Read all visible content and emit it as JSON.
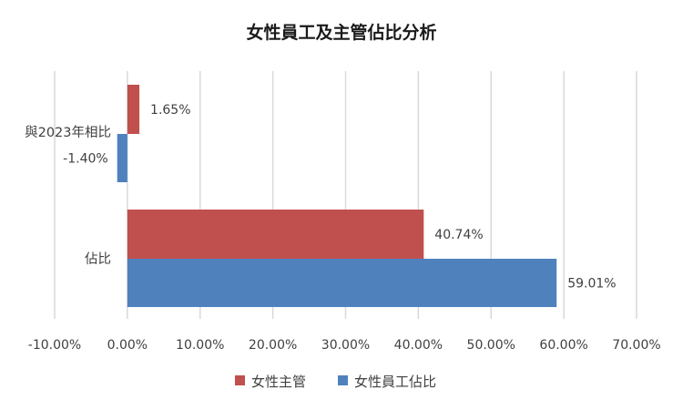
{
  "chart_data": {
    "type": "bar",
    "orientation": "horizontal",
    "title": "女性員工及主管佔比分析",
    "categories": [
      "與2023年相比",
      "佔比"
    ],
    "series": [
      {
        "name": "女性主管",
        "color": "#C0504D",
        "values": [
          1.65,
          40.74
        ],
        "labels": [
          "1.65%",
          "40.74%"
        ]
      },
      {
        "name": "女性員工佔比",
        "color": "#4F81BD",
        "values": [
          -1.4,
          59.01
        ],
        "labels": [
          "-1.40%",
          "59.01%"
        ]
      }
    ],
    "xlim": [
      -10,
      70
    ],
    "xticks": [
      -10,
      0,
      10,
      20,
      30,
      40,
      50,
      60,
      70
    ],
    "xtick_labels": [
      "-10.00%",
      "0.00%",
      "10.00%",
      "20.00%",
      "30.00%",
      "40.00%",
      "50.00%",
      "60.00%",
      "70.00%"
    ],
    "grid": true,
    "legend": "bottom"
  }
}
